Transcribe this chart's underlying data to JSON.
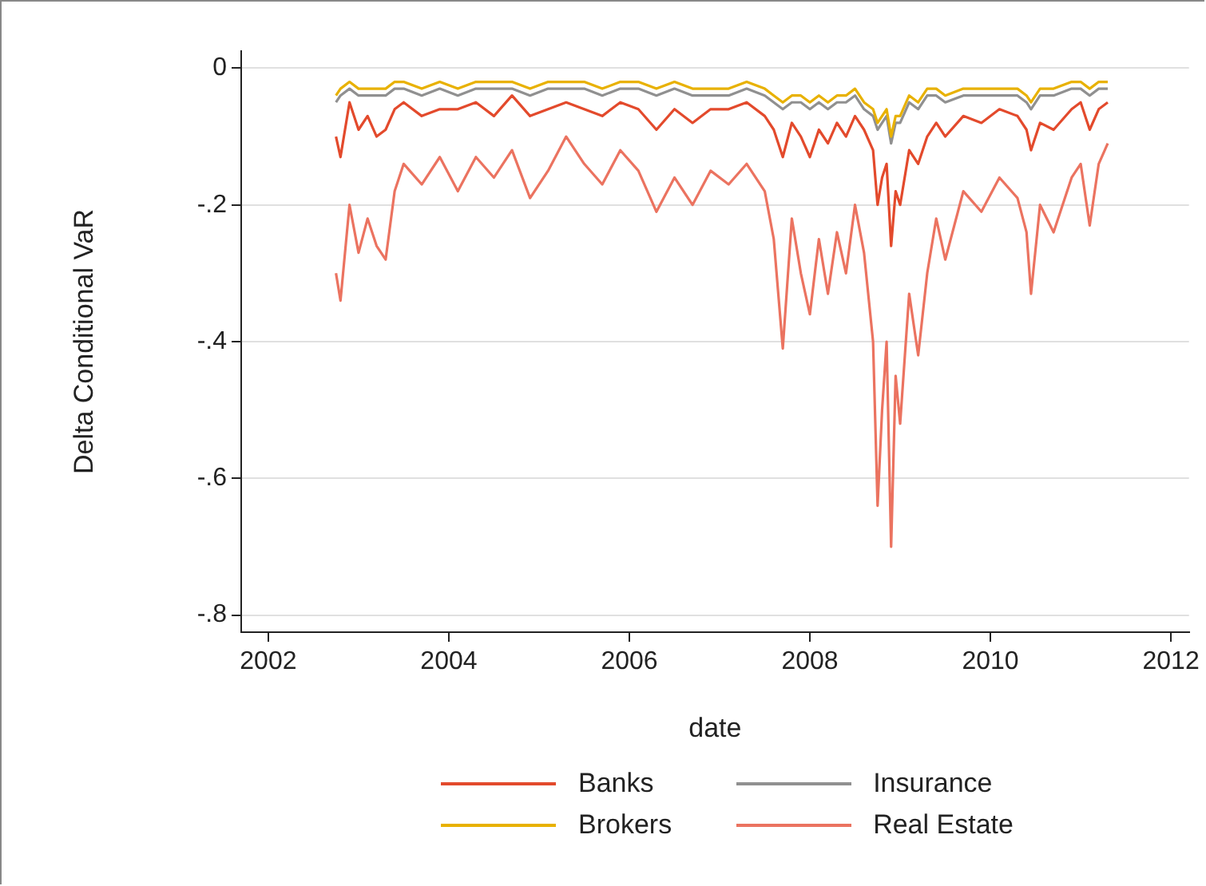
{
  "chart_data": {
    "type": "line",
    "xlabel": "date",
    "ylabel": "Delta Conditional VaR",
    "xlim": [
      2001.7,
      2012.2
    ],
    "xticks": [
      2002,
      2004,
      2006,
      2008,
      2010,
      2012
    ],
    "ylim": [
      -0.825,
      0.025
    ],
    "yticks": [
      {
        "value": 0,
        "label": "0"
      },
      {
        "value": -0.2,
        "label": "-.2"
      },
      {
        "value": -0.4,
        "label": "-.4"
      },
      {
        "value": -0.6,
        "label": "-.6"
      },
      {
        "value": -0.8,
        "label": "-.8"
      }
    ],
    "grid": "y",
    "legend": "bottom",
    "marker": "none",
    "line_style": "solid",
    "x": [
      2002.75,
      2002.8,
      2002.9,
      2003.0,
      2003.1,
      2003.2,
      2003.3,
      2003.4,
      2003.5,
      2003.7,
      2003.9,
      2004.1,
      2004.3,
      2004.5,
      2004.7,
      2004.9,
      2005.1,
      2005.3,
      2005.5,
      2005.7,
      2005.9,
      2006.1,
      2006.3,
      2006.5,
      2006.7,
      2006.9,
      2007.1,
      2007.3,
      2007.5,
      2007.6,
      2007.7,
      2007.8,
      2007.9,
      2008.0,
      2008.1,
      2008.2,
      2008.3,
      2008.4,
      2008.5,
      2008.6,
      2008.7,
      2008.75,
      2008.8,
      2008.85,
      2008.9,
      2008.95,
      2009.0,
      2009.1,
      2009.2,
      2009.3,
      2009.4,
      2009.5,
      2009.7,
      2009.9,
      2010.1,
      2010.3,
      2010.4,
      2010.45,
      2010.55,
      2010.7,
      2010.9,
      2011.0,
      2011.1,
      2011.2,
      2011.3
    ],
    "series": [
      {
        "name": "Banks",
        "color": "#e34a2c",
        "values": [
          -0.1,
          -0.13,
          -0.05,
          -0.09,
          -0.07,
          -0.1,
          -0.09,
          -0.06,
          -0.05,
          -0.07,
          -0.06,
          -0.06,
          -0.05,
          -0.07,
          -0.04,
          -0.07,
          -0.06,
          -0.05,
          -0.06,
          -0.07,
          -0.05,
          -0.06,
          -0.09,
          -0.06,
          -0.08,
          -0.06,
          -0.06,
          -0.05,
          -0.07,
          -0.09,
          -0.13,
          -0.08,
          -0.1,
          -0.13,
          -0.09,
          -0.11,
          -0.08,
          -0.1,
          -0.07,
          -0.09,
          -0.12,
          -0.2,
          -0.16,
          -0.14,
          -0.26,
          -0.18,
          -0.2,
          -0.12,
          -0.14,
          -0.1,
          -0.08,
          -0.1,
          -0.07,
          -0.08,
          -0.06,
          -0.07,
          -0.09,
          -0.12,
          -0.08,
          -0.09,
          -0.06,
          -0.05,
          -0.09,
          -0.06,
          -0.05
        ]
      },
      {
        "name": "Brokers",
        "color": "#e8b100",
        "values": [
          -0.04,
          -0.03,
          -0.02,
          -0.03,
          -0.03,
          -0.03,
          -0.03,
          -0.02,
          -0.02,
          -0.03,
          -0.02,
          -0.03,
          -0.02,
          -0.02,
          -0.02,
          -0.03,
          -0.02,
          -0.02,
          -0.02,
          -0.03,
          -0.02,
          -0.02,
          -0.03,
          -0.02,
          -0.03,
          -0.03,
          -0.03,
          -0.02,
          -0.03,
          -0.04,
          -0.05,
          -0.04,
          -0.04,
          -0.05,
          -0.04,
          -0.05,
          -0.04,
          -0.04,
          -0.03,
          -0.05,
          -0.06,
          -0.08,
          -0.07,
          -0.06,
          -0.1,
          -0.07,
          -0.07,
          -0.04,
          -0.05,
          -0.03,
          -0.03,
          -0.04,
          -0.03,
          -0.03,
          -0.03,
          -0.03,
          -0.04,
          -0.05,
          -0.03,
          -0.03,
          -0.02,
          -0.02,
          -0.03,
          -0.02,
          -0.02
        ]
      },
      {
        "name": "Insurance",
        "color": "#909090",
        "values": [
          -0.05,
          -0.04,
          -0.03,
          -0.04,
          -0.04,
          -0.04,
          -0.04,
          -0.03,
          -0.03,
          -0.04,
          -0.03,
          -0.04,
          -0.03,
          -0.03,
          -0.03,
          -0.04,
          -0.03,
          -0.03,
          -0.03,
          -0.04,
          -0.03,
          -0.03,
          -0.04,
          -0.03,
          -0.04,
          -0.04,
          -0.04,
          -0.03,
          -0.04,
          -0.05,
          -0.06,
          -0.05,
          -0.05,
          -0.06,
          -0.05,
          -0.06,
          -0.05,
          -0.05,
          -0.04,
          -0.06,
          -0.07,
          -0.09,
          -0.08,
          -0.07,
          -0.11,
          -0.08,
          -0.08,
          -0.05,
          -0.06,
          -0.04,
          -0.04,
          -0.05,
          -0.04,
          -0.04,
          -0.04,
          -0.04,
          -0.05,
          -0.06,
          -0.04,
          -0.04,
          -0.03,
          -0.03,
          -0.04,
          -0.03,
          -0.03
        ]
      },
      {
        "name": "Real Estate",
        "color": "#eb7360",
        "values": [
          -0.3,
          -0.34,
          -0.2,
          -0.27,
          -0.22,
          -0.26,
          -0.28,
          -0.18,
          -0.14,
          -0.17,
          -0.13,
          -0.18,
          -0.13,
          -0.16,
          -0.12,
          -0.19,
          -0.15,
          -0.1,
          -0.14,
          -0.17,
          -0.12,
          -0.15,
          -0.21,
          -0.16,
          -0.2,
          -0.15,
          -0.17,
          -0.14,
          -0.18,
          -0.25,
          -0.41,
          -0.22,
          -0.3,
          -0.36,
          -0.25,
          -0.33,
          -0.24,
          -0.3,
          -0.2,
          -0.27,
          -0.4,
          -0.64,
          -0.5,
          -0.4,
          -0.7,
          -0.45,
          -0.52,
          -0.33,
          -0.42,
          -0.3,
          -0.22,
          -0.28,
          -0.18,
          -0.21,
          -0.16,
          -0.19,
          -0.24,
          -0.33,
          -0.2,
          -0.24,
          -0.16,
          -0.14,
          -0.23,
          -0.14,
          -0.11
        ]
      }
    ]
  }
}
